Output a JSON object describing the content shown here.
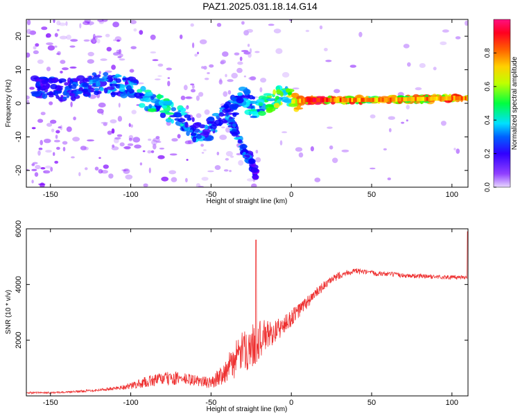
{
  "figure_title": "PAZ1.2025.031.18.14.G14",
  "chart_data": [
    {
      "type": "heatmap",
      "title": "",
      "xlabel": "Height of straight line (km)",
      "ylabel": "Frequency (Hz)",
      "xlim": [
        -165,
        110
      ],
      "ylim": [
        -25,
        25
      ],
      "xticks": [
        -150,
        -100,
        -50,
        0,
        50,
        100
      ],
      "yticks": [
        -20,
        -10,
        0,
        10,
        20
      ],
      "colorbar": {
        "label": "Normalized spectral amplitude",
        "range": [
          0,
          1
        ],
        "ticks": [
          0.0,
          0.2,
          0.4,
          0.6,
          0.8
        ],
        "tick_labels": [
          "0.0",
          "0.2",
          "0.4",
          "0.6",
          "0.8"
        ],
        "colormap": [
          "#e0ccff",
          "#8000ff",
          "#0000ff",
          "#00ffff",
          "#00ff00",
          "#ffff00",
          "#ff8000",
          "#ff0000",
          "#ff0080"
        ]
      },
      "ridge": {
        "x": [
          -160,
          -140,
          -120,
          -100,
          -90,
          -80,
          -70,
          -60,
          -55,
          -50,
          -40,
          -30,
          -22,
          -15,
          -8,
          -5,
          0,
          10,
          50,
          100,
          110
        ],
        "y": [
          5,
          4,
          6,
          5,
          1,
          -1,
          -4,
          -8,
          -9,
          -7,
          -3,
          2,
          -2,
          0,
          2,
          3.5,
          0.5,
          1,
          1,
          1.5,
          1.5
        ],
        "amp": [
          0.25,
          0.25,
          0.3,
          0.3,
          0.4,
          0.4,
          0.35,
          0.3,
          0.3,
          0.3,
          0.3,
          0.3,
          0.4,
          0.5,
          0.55,
          0.5,
          0.6,
          0.85,
          0.7,
          0.75,
          0.7
        ]
      },
      "branch": {
        "x": [
          -40,
          -35,
          -30,
          -25,
          -22
        ],
        "y": [
          -3,
          -8,
          -13,
          -18,
          -21
        ],
        "amp": [
          0.3,
          0.3,
          0.3,
          0.25,
          0.2
        ]
      }
    },
    {
      "type": "line",
      "title": "",
      "xlabel": "Height of straight line (km)",
      "ylabel": "SNR (10 * v/v)",
      "xlim": [
        -165,
        110
      ],
      "ylim": [
        0,
        6000
      ],
      "xticks": [
        -150,
        -100,
        -50,
        0,
        50,
        100
      ],
      "yticks": [
        2000,
        4000,
        6000
      ],
      "series": [
        {
          "color": "#ee3030",
          "envelope_x": [
            -165,
            -140,
            -120,
            -110,
            -100,
            -90,
            -80,
            -70,
            -60,
            -50,
            -45,
            -40,
            -35,
            -30,
            -25,
            -20,
            -15,
            -10,
            -5,
            0,
            5,
            10,
            15,
            20,
            25,
            30,
            35,
            40,
            50,
            60,
            70,
            80,
            90,
            100,
            110
          ],
          "envelope_y": [
            100,
            120,
            200,
            250,
            320,
            450,
            550,
            550,
            500,
            400,
            600,
            800,
            1100,
            1400,
            1500,
            1800,
            2000,
            2200,
            2400,
            2700,
            3000,
            3300,
            3600,
            3900,
            4100,
            4300,
            4400,
            4450,
            4380,
            4350,
            4300,
            4280,
            4250,
            4230,
            4250
          ],
          "noise_amp": [
            40,
            40,
            60,
            80,
            150,
            250,
            300,
            300,
            250,
            250,
            400,
            600,
            800,
            900,
            1000,
            900,
            700,
            500,
            450,
            400,
            350,
            300,
            250,
            200,
            180,
            160,
            140,
            130,
            120,
            110,
            100,
            100,
            100,
            100,
            100
          ],
          "spike_x": -22,
          "spike_y": 5600
        }
      ]
    }
  ]
}
